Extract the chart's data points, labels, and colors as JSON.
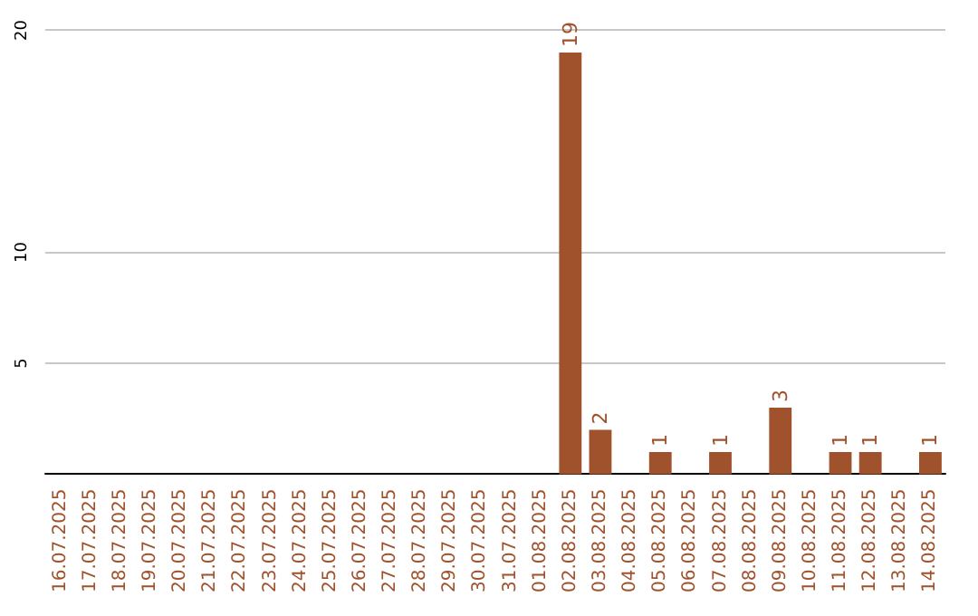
{
  "chart_data": {
    "type": "bar",
    "categories": [
      "16.07.2025",
      "17.07.2025",
      "18.07.2025",
      "19.07.2025",
      "20.07.2025",
      "21.07.2025",
      "22.07.2025",
      "23.07.2025",
      "24.07.2025",
      "25.07.2025",
      "26.07.2025",
      "27.07.2025",
      "28.07.2025",
      "29.07.2025",
      "30.07.2025",
      "31.07.2025",
      "01.08.2025",
      "02.08.2025",
      "03.08.2025",
      "04.08.2025",
      "05.08.2025",
      "06.08.2025",
      "07.08.2025",
      "08.08.2025",
      "09.08.2025",
      "10.08.2025",
      "11.08.2025",
      "12.08.2025",
      "13.08.2025",
      "14.08.2025"
    ],
    "values": [
      0,
      0,
      0,
      0,
      0,
      0,
      0,
      0,
      0,
      0,
      0,
      0,
      0,
      0,
      0,
      0,
      0,
      19,
      2,
      0,
      1,
      0,
      1,
      0,
      3,
      0,
      1,
      1,
      0,
      1
    ],
    "value_labels": [
      null,
      null,
      null,
      null,
      null,
      null,
      null,
      null,
      null,
      null,
      null,
      null,
      null,
      null,
      null,
      null,
      null,
      "19",
      "2",
      null,
      "1",
      null,
      "1",
      null,
      "3",
      null,
      "1",
      "1",
      null,
      "1"
    ],
    "color": "#a0522d",
    "ylim": [
      0,
      20
    ],
    "yticks": [
      5,
      10,
      20
    ],
    "grid": "y"
  }
}
